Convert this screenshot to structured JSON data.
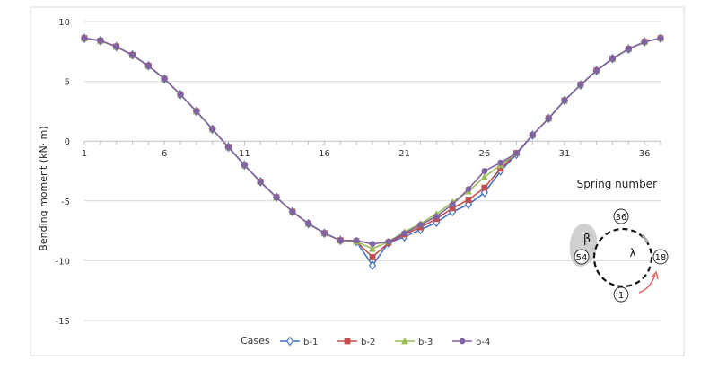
{
  "chart_data": {
    "type": "line",
    "title": "",
    "xlabel": "Spring number",
    "ylabel": "Bending moment (kN· m)",
    "xlim": [
      1,
      37
    ],
    "ylim": [
      -15,
      10
    ],
    "xticks": [
      1,
      6,
      11,
      16,
      21,
      26,
      31,
      36
    ],
    "yticks": [
      10,
      5,
      0,
      -5,
      -10,
      -15
    ],
    "grid": "horizontal",
    "legend_title": "Cases",
    "legend_position": "bottom",
    "x": [
      1,
      2,
      3,
      4,
      5,
      6,
      7,
      8,
      9,
      10,
      11,
      12,
      13,
      14,
      15,
      16,
      17,
      18,
      19,
      20,
      21,
      22,
      23,
      24,
      25,
      26,
      27,
      28,
      29,
      30,
      31,
      32,
      33,
      34,
      35,
      36,
      37
    ],
    "series": [
      {
        "name": "b-1",
        "color": "#4472c4",
        "marker": "diamond-open",
        "values": [
          8.6,
          8.4,
          7.9,
          7.2,
          6.3,
          5.2,
          3.9,
          2.5,
          1.0,
          -0.5,
          -2.0,
          -3.4,
          -4.7,
          -5.9,
          -6.9,
          -7.7,
          -8.3,
          -8.4,
          -10.4,
          -8.5,
          -8.0,
          -7.4,
          -6.8,
          -5.9,
          -5.3,
          -4.3,
          -2.5,
          -1.1,
          0.5,
          1.9,
          3.4,
          4.7,
          5.9,
          6.9,
          7.7,
          8.3,
          8.6
        ]
      },
      {
        "name": "b-2",
        "color": "#c0504d",
        "marker": "square",
        "values": [
          8.6,
          8.4,
          7.9,
          7.2,
          6.3,
          5.2,
          3.9,
          2.5,
          1.0,
          -0.5,
          -2.0,
          -3.4,
          -4.7,
          -5.9,
          -6.9,
          -7.7,
          -8.3,
          -8.4,
          -9.7,
          -8.5,
          -7.8,
          -7.2,
          -6.5,
          -5.6,
          -4.9,
          -3.9,
          -2.3,
          -1.0,
          0.5,
          1.9,
          3.4,
          4.7,
          5.9,
          6.9,
          7.7,
          8.3,
          8.6
        ]
      },
      {
        "name": "b-3",
        "color": "#9bbb59",
        "marker": "triangle",
        "values": [
          8.6,
          8.4,
          7.9,
          7.2,
          6.3,
          5.2,
          3.9,
          2.5,
          1.0,
          -0.5,
          -2.0,
          -3.4,
          -4.7,
          -5.9,
          -6.9,
          -7.7,
          -8.3,
          -8.4,
          -9.0,
          -8.4,
          -7.6,
          -6.9,
          -6.1,
          -5.1,
          -4.2,
          -3.0,
          -2.0,
          -1.0,
          0.5,
          1.9,
          3.4,
          4.7,
          5.9,
          6.9,
          7.7,
          8.3,
          8.6
        ]
      },
      {
        "name": "b-4",
        "color": "#8064a2",
        "marker": "circle",
        "values": [
          8.6,
          8.4,
          7.9,
          7.2,
          6.3,
          5.2,
          3.9,
          2.5,
          1.0,
          -0.5,
          -2.0,
          -3.4,
          -4.7,
          -5.9,
          -6.9,
          -7.7,
          -8.3,
          -8.3,
          -8.6,
          -8.4,
          -7.7,
          -7.0,
          -6.3,
          -5.3,
          -4.0,
          -2.5,
          -1.8,
          -1.0,
          0.5,
          1.9,
          3.4,
          4.7,
          5.9,
          6.9,
          7.7,
          8.3,
          8.6
        ]
      }
    ]
  },
  "inset": {
    "label_top": "36",
    "label_left": "54",
    "label_right": "18",
    "label_bottom": "1",
    "symbol_beta": "β",
    "symbol_lambda": "λ"
  },
  "colors": {
    "grid": "#d9d9d9",
    "axis": "#bfbfbf",
    "frame": "#d9d9d9",
    "shade": "#d0d0d0",
    "arrow": "#e0605a"
  }
}
